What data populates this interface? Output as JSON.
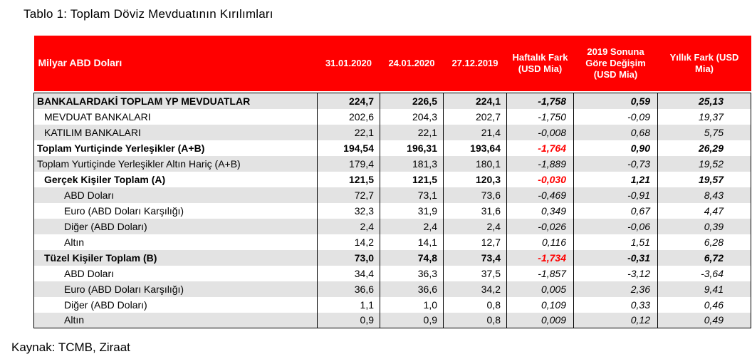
{
  "caption": "Tablo 1: Toplam Döviz Mevduatının Kırılımları",
  "source": "Kaynak: TCMB, Ziraat",
  "colors": {
    "header_bg": "#ff0000",
    "header_text": "#ffffff",
    "negative_highlight": "#ff0000",
    "stripe": "#e3e3e3"
  },
  "table": {
    "headers": [
      "Milyar ABD Doları",
      "31.01.2020",
      "24.01.2020",
      "27.12.2019",
      "Haftalık Fark (USD Mia)",
      "2019 Sonuna Göre Değişim (USD Mia)",
      "Yıllık Fark (USD Mia)"
    ],
    "rows": [
      {
        "label": "BANKALARDAKİ TOPLAM YP MEVDUATLAR",
        "indent": 0,
        "bold": true,
        "values": [
          "224,7",
          "226,5",
          "224,1",
          "-1,758",
          "0,59",
          "25,13"
        ],
        "red": false
      },
      {
        "label": "MEVDUAT BANKALARI",
        "indent": 1,
        "bold": false,
        "values": [
          "202,6",
          "204,3",
          "202,7",
          "-1,750",
          "-0,09",
          "19,37"
        ],
        "red": false
      },
      {
        "label": "KATILIM BANKALARI",
        "indent": 1,
        "bold": false,
        "values": [
          "22,1",
          "22,1",
          "21,4",
          "-0,008",
          "0,68",
          "5,75"
        ],
        "red": false
      },
      {
        "label": "Toplam Yurtiçinde Yerleşikler (A+B)",
        "indent": 0,
        "bold": true,
        "values": [
          "194,54",
          "196,31",
          "193,64",
          "-1,764",
          "0,90",
          "26,29"
        ],
        "red": true
      },
      {
        "label": "Toplam Yurtiçinde Yerleşikler Altın Hariç (A+B)",
        "indent": 0,
        "bold": false,
        "values": [
          "179,4",
          "181,3",
          "180,1",
          "-1,889",
          "-0,73",
          "19,52"
        ],
        "red": false
      },
      {
        "label": "Gerçek Kişiler Toplam (A)",
        "indent": 1,
        "bold": true,
        "values": [
          "121,5",
          "121,5",
          "120,3",
          "-0,030",
          "1,21",
          "19,57"
        ],
        "red": true
      },
      {
        "label": "ABD Doları",
        "indent": 2,
        "bold": false,
        "values": [
          "72,7",
          "73,1",
          "73,6",
          "-0,469",
          "-0,91",
          "8,43"
        ],
        "red": false
      },
      {
        "label": "Euro (ABD Doları Karşılığı)",
        "indent": 2,
        "bold": false,
        "values": [
          "32,3",
          "31,9",
          "31,6",
          "0,349",
          "0,67",
          "4,47"
        ],
        "red": false
      },
      {
        "label": "Diğer (ABD Doları)",
        "indent": 2,
        "bold": false,
        "values": [
          "2,4",
          "2,4",
          "2,4",
          "-0,026",
          "-0,06",
          "0,39"
        ],
        "red": false
      },
      {
        "label": "Altın",
        "indent": 2,
        "bold": false,
        "values": [
          "14,2",
          "14,1",
          "12,7",
          "0,116",
          "1,51",
          "6,28"
        ],
        "red": false
      },
      {
        "label": "Tüzel Kişiler Toplam (B)",
        "indent": 1,
        "bold": true,
        "values": [
          "73,0",
          "74,8",
          "73,4",
          "-1,734",
          "-0,31",
          "6,72"
        ],
        "red": true
      },
      {
        "label": "ABD Doları",
        "indent": 2,
        "bold": false,
        "values": [
          "34,4",
          "36,3",
          "37,5",
          "-1,857",
          "-3,12",
          "-3,64"
        ],
        "red": false
      },
      {
        "label": "Euro (ABD Doları Karşılığı)",
        "indent": 2,
        "bold": false,
        "values": [
          "36,6",
          "36,6",
          "34,2",
          "0,005",
          "2,36",
          "9,41"
        ],
        "red": false
      },
      {
        "label": "Diğer (ABD Doları)",
        "indent": 2,
        "bold": false,
        "values": [
          "1,1",
          "1,0",
          "0,8",
          "0,109",
          "0,33",
          "0,46"
        ],
        "red": false
      },
      {
        "label": "Altın",
        "indent": 2,
        "bold": false,
        "values": [
          "0,9",
          "0,9",
          "0,8",
          "0,009",
          "0,12",
          "0,49"
        ],
        "red": false
      }
    ]
  }
}
